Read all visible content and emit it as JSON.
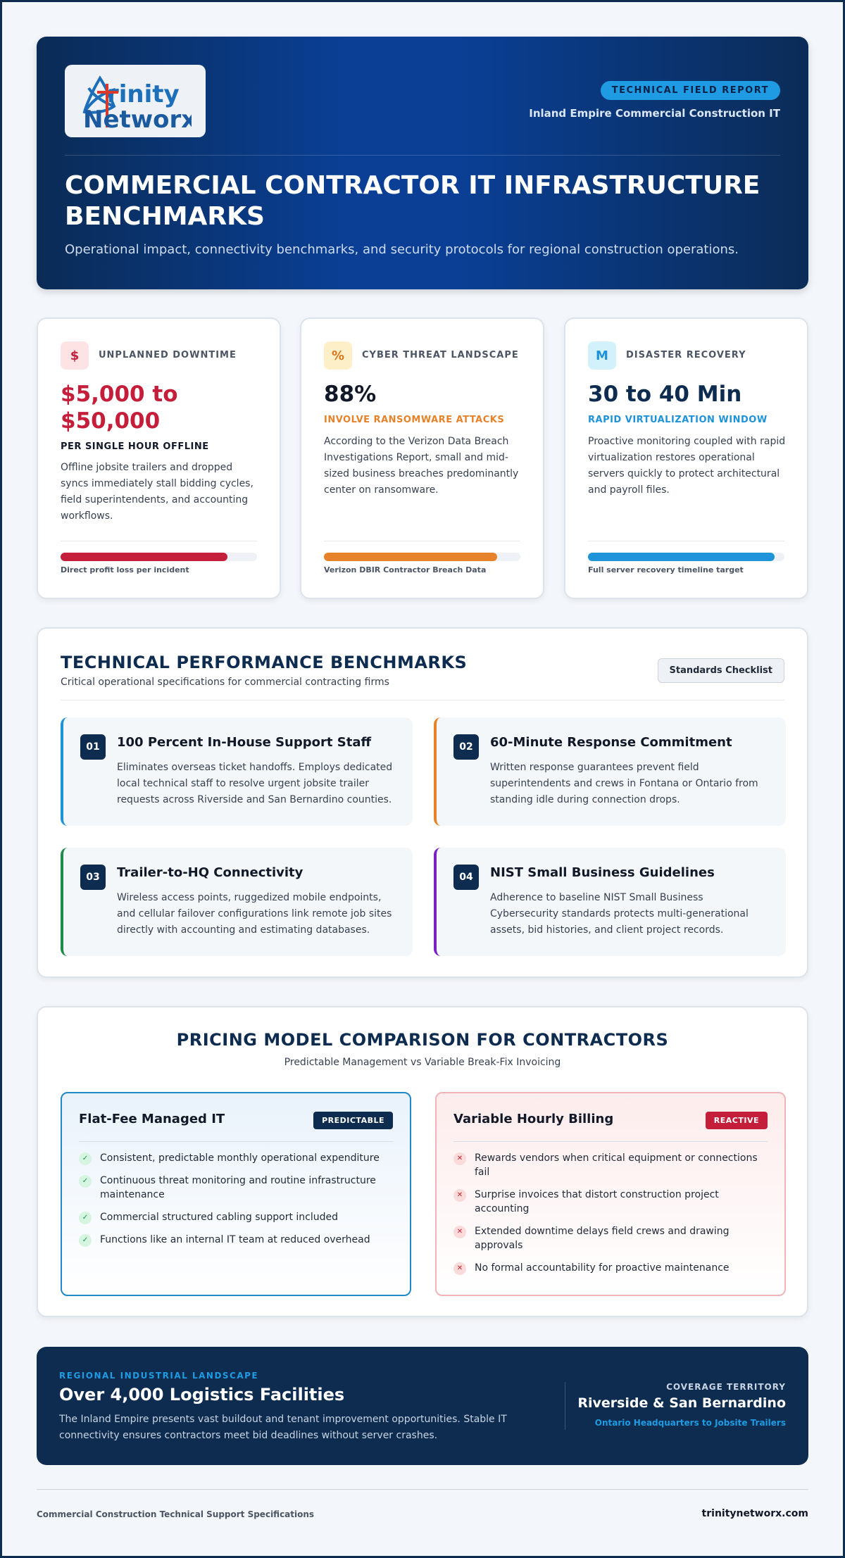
{
  "header": {
    "logo_text": "Trinity Networx",
    "tag": "TECHNICAL FIELD REPORT",
    "subtitle": "Inland Empire Commercial Construction IT",
    "title": "COMMERCIAL CONTRACTOR IT INFRASTRUCTURE BENCHMARKS",
    "description": "Operational impact, connectivity benchmarks, and security protocols for regional construction operations."
  },
  "stats": [
    {
      "icon": "$",
      "icon_name": "dollar-icon",
      "label": "UNPLANNED DOWNTIME",
      "value": "$5,000 to $50,000",
      "sub": "PER SINGLE HOUR OFFLINE",
      "description": "Offline jobsite trailers and dropped syncs immediately stall bidding cycles, field superintendents, and accounting workflows.",
      "bar_fraction": 0.85,
      "bar_caption": "Direct profit loss per incident",
      "accent": "#c41e3a"
    },
    {
      "icon": "%",
      "icon_name": "percent-icon",
      "label": "CYBER THREAT LANDSCAPE",
      "value": "88%",
      "sub": "INVOLVE RANSOMWARE ATTACKS",
      "description": "According to the Verizon Data Breach Investigations Report, small and mid-sized business breaches predominantly center on ransomware.",
      "bar_fraction": 0.88,
      "bar_caption": "Verizon DBIR Contractor Breach Data",
      "accent": "#e5822a"
    },
    {
      "icon": "M",
      "icon_name": "minutes-icon",
      "label": "DISASTER RECOVERY",
      "value": "30 to 40 Min",
      "sub": "RAPID VIRTUALIZATION WINDOW",
      "description": "Proactive monitoring coupled with rapid virtualization restores operational servers quickly to protect architectural and payroll files.",
      "bar_fraction": 0.95,
      "bar_caption": "Full server recovery timeline target",
      "accent": "#1e93d9"
    }
  ],
  "benchmarks": {
    "title": "TECHNICAL PERFORMANCE BENCHMARKS",
    "subtitle": "Critical operational specifications for commercial contracting firms",
    "button": "Standards Checklist",
    "items": [
      {
        "num": "01",
        "title": "100 Percent In-House Support Staff",
        "description": "Eliminates overseas ticket handoffs. Employs dedicated local technical staff to resolve urgent jobsite trailer requests across Riverside and San Bernardino counties.",
        "accent": "#1e93d9"
      },
      {
        "num": "02",
        "title": "60-Minute Response Commitment",
        "description": "Written response guarantees prevent field superintendents and crews in Fontana or Ontario from standing idle during connection drops.",
        "accent": "#e5822a"
      },
      {
        "num": "03",
        "title": "Trailer-to-HQ Connectivity",
        "description": "Wireless access points, ruggedized mobile endpoints, and cellular failover configurations link remote job sites directly with accounting and estimating databases.",
        "accent": "#1f8a4c"
      },
      {
        "num": "04",
        "title": "NIST Small Business Guidelines",
        "description": "Adherence to baseline NIST Small Business Cybersecurity standards protects multi-generational assets, bid histories, and client project records.",
        "accent": "#7a1fc2"
      }
    ]
  },
  "pricing": {
    "title": "PRICING MODEL COMPARISON FOR CONTRACTORS",
    "subtitle": "Predictable Management vs Variable Break-Fix Invoicing",
    "flat": {
      "name": "Flat-Fee Managed IT",
      "badge": "PREDICTABLE",
      "items": [
        "Consistent, predictable monthly operational expenditure",
        "Continuous threat monitoring and routine infrastructure maintenance",
        "Commercial structured cabling support included",
        "Functions like an internal IT team at reduced overhead"
      ]
    },
    "hourly": {
      "name": "Variable Hourly Billing",
      "badge": "REACTIVE",
      "items": [
        "Rewards vendors when critical equipment or connections fail",
        "Surprise invoices that distort construction project accounting",
        "Extended downtime delays field crews and drawing approvals",
        "No formal accountability for proactive maintenance"
      ]
    }
  },
  "region": {
    "kicker": "REGIONAL INDUSTRIAL LANDSCAPE",
    "title": "Over 4,000 Logistics Facilities",
    "description": "The Inland Empire presents vast buildout and tenant improvement opportunities. Stable IT connectivity ensures contractors meet bid deadlines without server crashes.",
    "coverage_label": "COVERAGE TERRITORY",
    "coverage_area": "Riverside & San Bernardino",
    "coverage_hq": "Ontario Headquarters to Jobsite Trailers"
  },
  "footer": {
    "left": "Commercial Construction Technical Support Specifications",
    "right": "trinitynetworx.com"
  }
}
